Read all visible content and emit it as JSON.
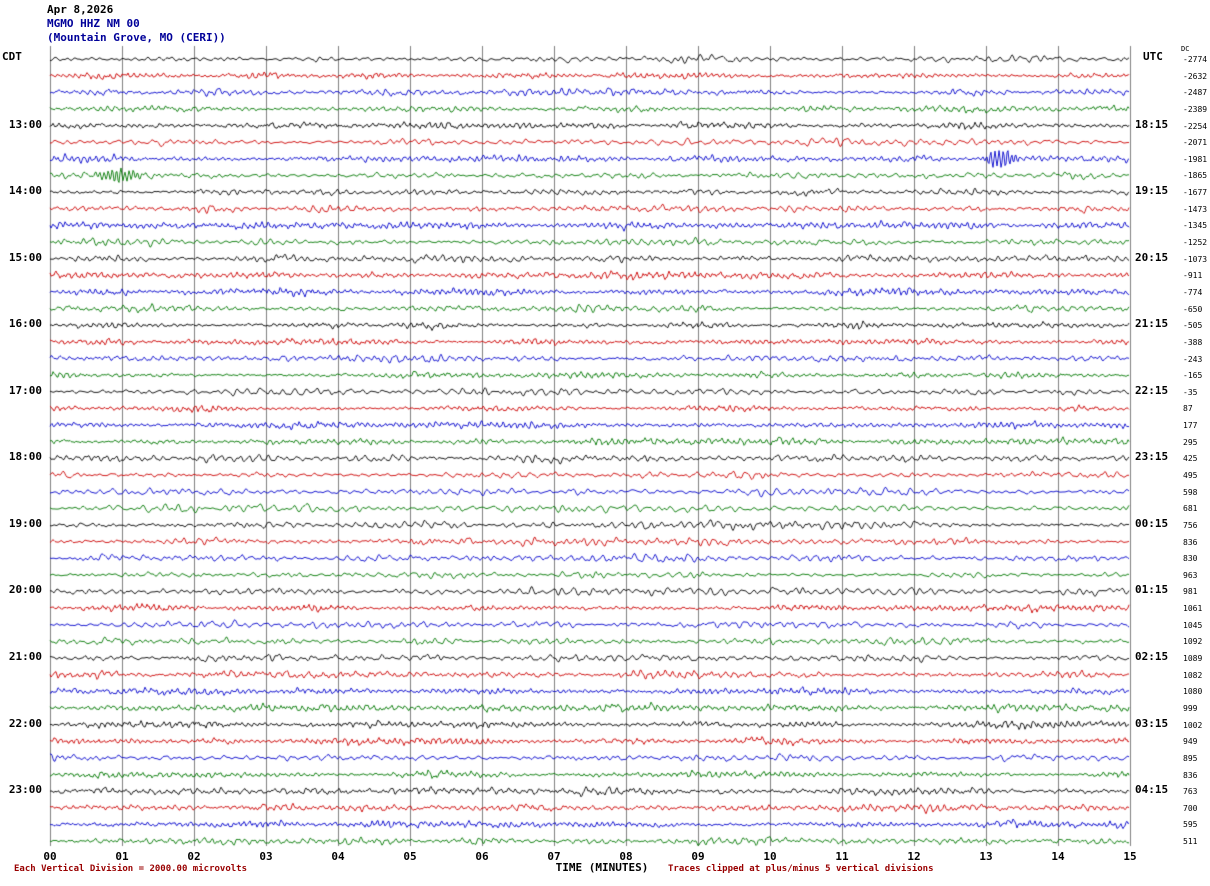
{
  "header": {
    "date": "Apr 8,2026",
    "station": "MGMO HHZ NM 00",
    "location": "(Mountain Grove, MO (CERI))",
    "left_tz": "CDT",
    "right_tz": "UTC",
    "dc_label": "DC"
  },
  "x_axis": {
    "title": "TIME (MINUTES)",
    "ticks": [
      "00",
      "01",
      "02",
      "03",
      "04",
      "05",
      "06",
      "07",
      "08",
      "09",
      "10",
      "11",
      "12",
      "13",
      "14",
      "15"
    ]
  },
  "footer": {
    "left": "Each Vertical Division = 2000.00 microvolts",
    "right": "Traces clipped at plus/minus 5 vertical divisions"
  },
  "colors": {
    "trace_cycle": [
      "#000000",
      "#cc0000",
      "#0000cc",
      "#007700"
    ],
    "grid": "#808080",
    "station_text": "#000099",
    "footer_text": "#990000"
  },
  "chart_data": {
    "type": "line",
    "subtype": "helicorder-seismogram",
    "title": "MGMO HHZ NM 00 webicorder, Apr 8,2026",
    "minutes_per_row": 15,
    "total_rows": 48,
    "x_range_minutes": [
      0,
      15
    ],
    "grid": "vertical-minute-lines",
    "row_color_cycle": [
      "black",
      "red",
      "blue",
      "green"
    ],
    "left_labels": [
      {
        "row": 4,
        "text": "13:00"
      },
      {
        "row": 8,
        "text": "14:00"
      },
      {
        "row": 12,
        "text": "15:00"
      },
      {
        "row": 16,
        "text": "16:00"
      },
      {
        "row": 20,
        "text": "17:00"
      },
      {
        "row": 24,
        "text": "18:00"
      },
      {
        "row": 28,
        "text": "19:00"
      },
      {
        "row": 32,
        "text": "20:00"
      },
      {
        "row": 36,
        "text": "21:00"
      },
      {
        "row": 40,
        "text": "22:00"
      },
      {
        "row": 44,
        "text": "23:00"
      }
    ],
    "right_labels": [
      {
        "row": 4,
        "text": "18:15"
      },
      {
        "row": 8,
        "text": "19:15"
      },
      {
        "row": 12,
        "text": "20:15"
      },
      {
        "row": 16,
        "text": "21:15"
      },
      {
        "row": 20,
        "text": "22:15"
      },
      {
        "row": 24,
        "text": "23:15"
      },
      {
        "row": 28,
        "text": "00:15"
      },
      {
        "row": 32,
        "text": "01:15"
      },
      {
        "row": 36,
        "text": "02:15"
      },
      {
        "row": 40,
        "text": "03:15"
      },
      {
        "row": 44,
        "text": "04:15"
      }
    ],
    "dc_values": [
      -2774,
      -2632,
      -2487,
      -2389,
      -2254,
      -2071,
      -1981,
      -1865,
      -1677,
      -1473,
      -1345,
      -1252,
      -1073,
      -911,
      -774,
      -650,
      -505,
      -388,
      -243,
      -165,
      -35,
      87,
      177,
      295,
      425,
      495,
      598,
      681,
      756,
      836,
      830,
      963,
      981,
      1061,
      1045,
      1092,
      1089,
      1082,
      1080,
      999,
      1002,
      949,
      895,
      836,
      763,
      700,
      595,
      511
    ],
    "events": [
      {
        "row": 6,
        "minute": 13.2,
        "amplitude": 4.2,
        "width_minutes": 0.3,
        "note": "blue burst"
      },
      {
        "row": 7,
        "minute": 0.95,
        "amplitude": 2.8,
        "width_minutes": 0.45,
        "note": "green burst"
      }
    ]
  }
}
